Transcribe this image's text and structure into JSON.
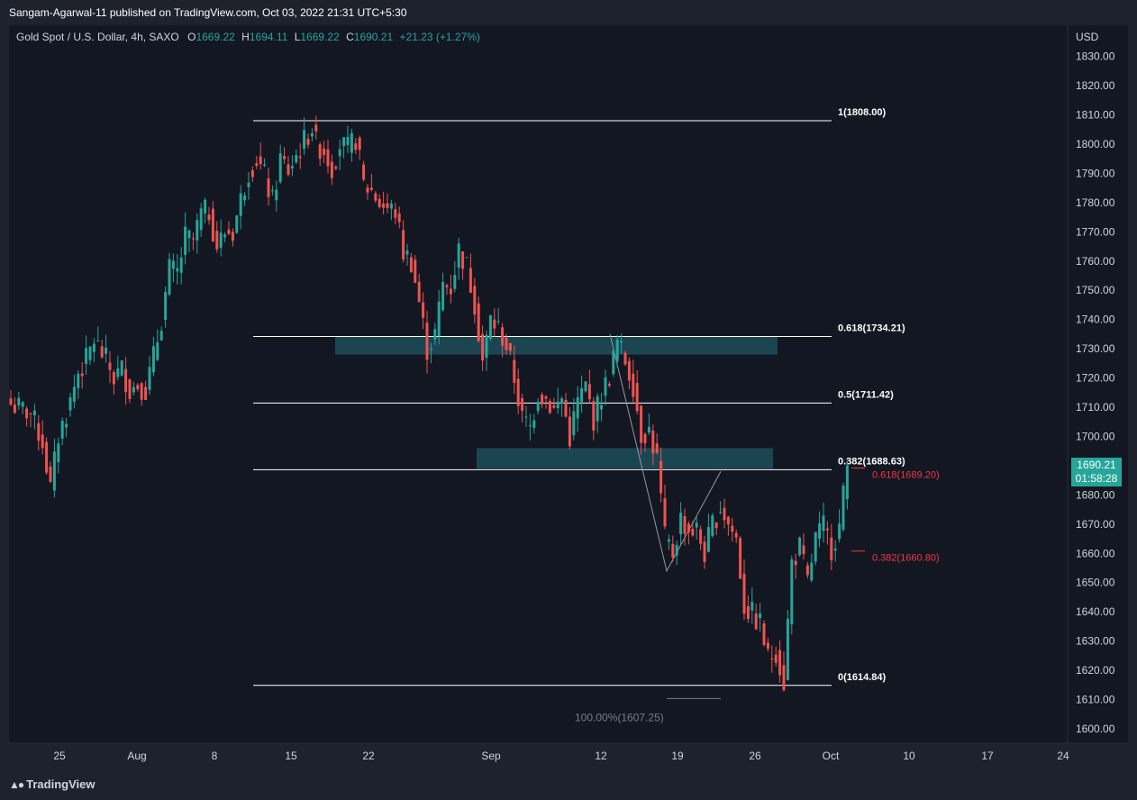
{
  "header": {
    "text": "Sangam-Agarwal-11 published on TradingView.com, Oct 03, 2022 21:31 UTC+5:30"
  },
  "legend": {
    "symbol": "Gold Spot / U.S. Dollar, 4h, SAXO",
    "open_label": "O",
    "open": "1669.22",
    "high_label": "H",
    "high": "1694.11",
    "low_label": "L",
    "low": "1669.22",
    "close_label": "C",
    "close": "1690.21",
    "change": "+21.23 (+1.27%)"
  },
  "price_tag": {
    "price": "1690.21",
    "countdown": "01:58:28"
  },
  "footer": {
    "logo_text": "TradingView"
  },
  "colors": {
    "background": "#131722",
    "up": "#26a69a",
    "down": "#ef5350",
    "zone": "#1f4e5b",
    "fib_line": "#ffffff",
    "fib_projection": "#f23645"
  },
  "chart_data": {
    "type": "candlestick",
    "title": "Gold Spot / U.S. Dollar, 4h, SAXO",
    "currency_label": "USD",
    "y_range": [
      1597,
      1838
    ],
    "y_ticks": [
      "1600.00",
      "1610.00",
      "1620.00",
      "1630.00",
      "1640.00",
      "1650.00",
      "1660.00",
      "1670.00",
      "1680.00",
      "1690.00",
      "1700.00",
      "1710.00",
      "1720.00",
      "1730.00",
      "1740.00",
      "1750.00",
      "1760.00",
      "1770.00",
      "1780.00",
      "1790.00",
      "1800.00",
      "1810.00",
      "1820.00",
      "1830.00"
    ],
    "x_ticks": [
      "25",
      "Aug",
      "8",
      "15",
      "22",
      "Sep",
      "12",
      "19",
      "26",
      "Oct",
      "10",
      "17",
      "24"
    ],
    "price_path": [
      [
        0,
        1711
      ],
      [
        5,
        1708
      ],
      [
        8,
        1698
      ],
      [
        10,
        1682
      ],
      [
        12,
        1700
      ],
      [
        15,
        1712
      ],
      [
        17,
        1722
      ],
      [
        19,
        1726
      ],
      [
        21,
        1733
      ],
      [
        24,
        1726
      ],
      [
        26,
        1720
      ],
      [
        28,
        1723
      ],
      [
        30,
        1716
      ],
      [
        32,
        1718
      ],
      [
        34,
        1716
      ],
      [
        36,
        1727
      ],
      [
        38,
        1740
      ],
      [
        40,
        1757
      ],
      [
        42,
        1756
      ],
      [
        44,
        1768
      ],
      [
        46,
        1767
      ],
      [
        48,
        1776
      ],
      [
        50,
        1777
      ],
      [
        52,
        1765
      ],
      [
        54,
        1770
      ],
      [
        56,
        1770
      ],
      [
        58,
        1781
      ],
      [
        60,
        1791
      ],
      [
        62,
        1795
      ],
      [
        64,
        1789
      ],
      [
        66,
        1780
      ],
      [
        68,
        1795
      ],
      [
        70,
        1791
      ],
      [
        72,
        1796
      ],
      [
        74,
        1801
      ],
      [
        76,
        1806
      ],
      [
        77,
        1800
      ],
      [
        79,
        1798
      ],
      [
        81,
        1792
      ],
      [
        83,
        1800
      ],
      [
        85,
        1798
      ],
      [
        87,
        1802
      ],
      [
        89,
        1786
      ],
      [
        91,
        1784
      ],
      [
        93,
        1780
      ],
      [
        95,
        1778
      ],
      [
        97,
        1777
      ],
      [
        99,
        1763
      ],
      [
        101,
        1760
      ],
      [
        103,
        1746
      ],
      [
        105,
        1730
      ],
      [
        107,
        1735
      ],
      [
        109,
        1752
      ],
      [
        111,
        1751
      ],
      [
        113,
        1764
      ],
      [
        115,
        1758
      ],
      [
        117,
        1746
      ],
      [
        119,
        1726
      ],
      [
        121,
        1740
      ],
      [
        123,
        1737
      ],
      [
        125,
        1731
      ],
      [
        127,
        1720
      ],
      [
        129,
        1706
      ],
      [
        131,
        1703
      ],
      [
        133,
        1715
      ],
      [
        135,
        1713
      ],
      [
        137,
        1709
      ],
      [
        139,
        1713
      ],
      [
        141,
        1700
      ],
      [
        143,
        1712
      ],
      [
        145,
        1717
      ],
      [
        147,
        1706
      ],
      [
        149,
        1714
      ],
      [
        151,
        1721
      ],
      [
        153,
        1732
      ],
      [
        155,
        1726
      ],
      [
        157,
        1718
      ],
      [
        159,
        1701
      ],
      [
        161,
        1702
      ],
      [
        163,
        1692
      ],
      [
        165,
        1665
      ],
      [
        167,
        1660
      ],
      [
        169,
        1672
      ],
      [
        171,
        1668
      ],
      [
        173,
        1668
      ],
      [
        175,
        1660
      ],
      [
        177,
        1670
      ],
      [
        179,
        1676
      ],
      [
        181,
        1670
      ],
      [
        183,
        1665
      ],
      [
        185,
        1642
      ],
      [
        187,
        1639
      ],
      [
        189,
        1636
      ],
      [
        191,
        1624
      ],
      [
        193,
        1627
      ],
      [
        195,
        1616
      ],
      [
        197,
        1657
      ],
      [
        199,
        1662
      ],
      [
        201,
        1650
      ],
      [
        203,
        1665
      ],
      [
        205,
        1669
      ],
      [
        207,
        1662
      ],
      [
        209,
        1669
      ],
      [
        211,
        1690
      ]
    ],
    "fib_retracement": [
      {
        "level": "1",
        "price": 1808.0,
        "label": "1(1808.00)"
      },
      {
        "level": "0.618",
        "price": 1734.21,
        "label": "0.618(1734.21)"
      },
      {
        "level": "0.5",
        "price": 1711.42,
        "label": "0.5(1711.42)"
      },
      {
        "level": "0.382",
        "price": 1688.63,
        "label": "0.382(1688.63)"
      },
      {
        "level": "0",
        "price": 1614.84,
        "label": "0(1614.84)"
      }
    ],
    "fib_extension": [
      {
        "level": "0.618",
        "price": 1689.2,
        "label": "0.618(1689.20)"
      },
      {
        "level": "0.382",
        "price": 1660.8,
        "label": "0.382(1660.80)"
      },
      {
        "level": "1",
        "price": 1607.25,
        "label": "100.00%(1607.25)"
      }
    ],
    "zones": [
      {
        "top": 1734.21,
        "bottom": 1728.0
      },
      {
        "top": 1696.0,
        "bottom": 1689.0
      }
    ]
  }
}
